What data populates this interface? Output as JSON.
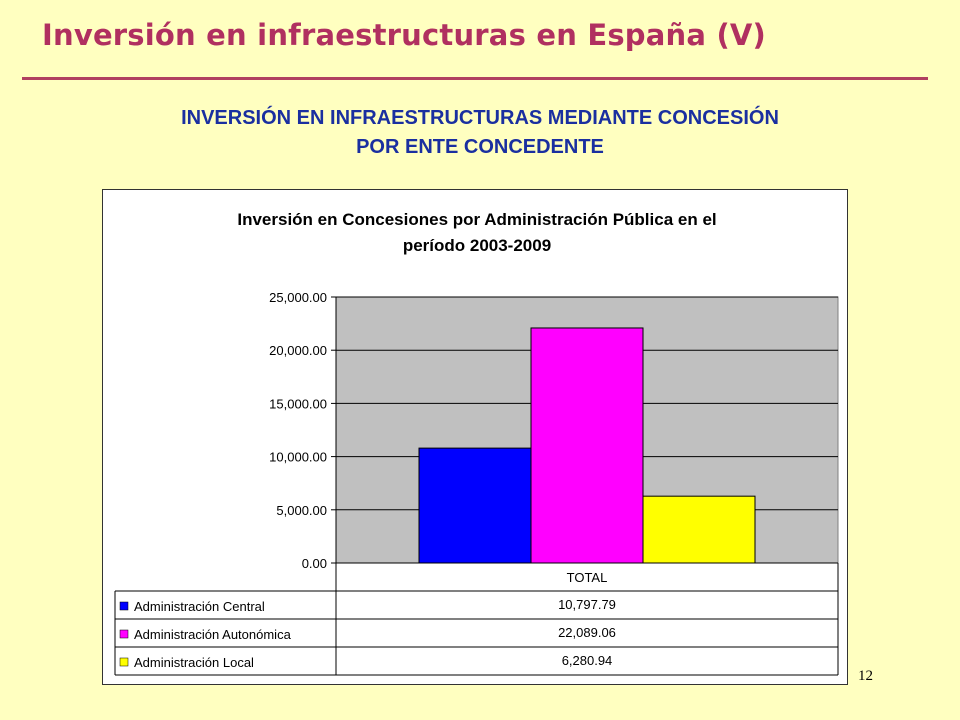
{
  "slide": {
    "title": "Inversión en infraestructuras en España (V)",
    "subtitle_line1": "INVERSIÓN EN INFRAESTRUCTURAS MEDIANTE CONCESIÓN",
    "subtitle_line2": "POR ENTE CONCEDENTE",
    "page_number": "12"
  },
  "colors": {
    "background": "#ffffc0",
    "title": "#b03060",
    "subtitle": "#1a2fa0",
    "plot_area": "#c0c0c0"
  },
  "chart_data": {
    "type": "bar",
    "title_line1": "Inversión en Concesiones por Administración Pública en el",
    "title_line2": "período 2003-2009",
    "categories": [
      "TOTAL"
    ],
    "series": [
      {
        "name": "Administración Central",
        "values": [
          10797.79
        ],
        "label": "10,797.79",
        "color": "#0000ff"
      },
      {
        "name": "Administración Autonómica",
        "values": [
          22089.06
        ],
        "label": "22,089.06",
        "color": "#ff00ff"
      },
      {
        "name": "Administración Local",
        "values": [
          6280.94
        ],
        "label": "6,280.94",
        "color": "#ffff00"
      }
    ],
    "ylim": [
      0,
      25000
    ],
    "yticks": [
      {
        "value": 0,
        "label": "0.00"
      },
      {
        "value": 5000,
        "label": "5,000.00"
      },
      {
        "value": 10000,
        "label": "10,000.00"
      },
      {
        "value": 15000,
        "label": "15,000.00"
      },
      {
        "value": 20000,
        "label": "20,000.00"
      },
      {
        "value": 25000,
        "label": "25,000.00"
      }
    ],
    "grid": true,
    "legend": "data-table-below"
  }
}
